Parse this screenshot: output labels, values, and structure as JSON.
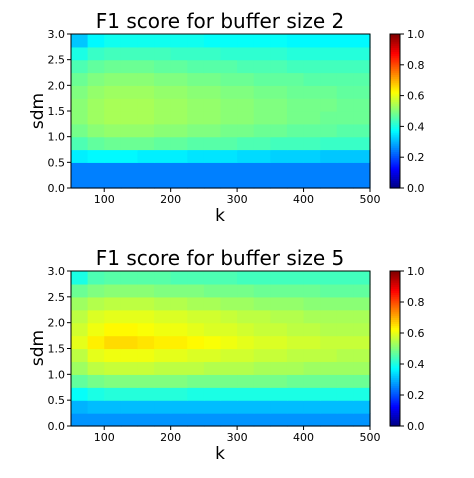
{
  "chart_data": [
    {
      "type": "heatmap",
      "title": "F1 score for buffer size 2",
      "xlabel": "k",
      "ylabel": "sdm",
      "xlim": [
        50,
        500
      ],
      "ylim": [
        0.0,
        3.0
      ],
      "x_ticks": [
        "100",
        "200",
        "300",
        "400",
        "500"
      ],
      "x_tick_values": [
        100,
        200,
        300,
        400,
        500
      ],
      "y_ticks": [
        "0.0",
        "0.5",
        "1.0",
        "1.5",
        "2.0",
        "2.5",
        "3.0"
      ],
      "y_tick_values": [
        0.0,
        0.5,
        1.0,
        1.5,
        2.0,
        2.5,
        3.0
      ],
      "colorbar": {
        "min": 0.0,
        "max": 1.0,
        "ticks": [
          "0.0",
          "0.2",
          "0.4",
          "0.6",
          "0.8",
          "1.0"
        ],
        "tick_values": [
          0.0,
          0.2,
          0.4,
          0.6,
          0.8,
          1.0
        ],
        "colormap": "jet"
      },
      "x_edges": [
        50,
        75,
        100,
        125,
        150,
        175,
        200,
        225,
        250,
        275,
        300,
        325,
        350,
        375,
        400,
        425,
        450,
        475,
        500
      ],
      "y_edges": [
        0.0,
        0.5,
        0.75,
        1.0,
        1.25,
        1.5,
        1.75,
        2.0,
        2.25,
        2.5,
        2.75,
        3.0
      ],
      "values": [
        [
          0.25,
          0.25,
          0.25,
          0.25,
          0.25,
          0.25,
          0.25,
          0.25,
          0.25,
          0.25,
          0.25,
          0.25,
          0.25,
          0.25,
          0.25,
          0.25,
          0.25,
          0.25
        ],
        [
          0.36,
          0.37,
          0.37,
          0.37,
          0.36,
          0.36,
          0.36,
          0.35,
          0.35,
          0.35,
          0.34,
          0.34,
          0.33,
          0.33,
          0.33,
          0.32,
          0.32,
          0.32
        ],
        [
          0.45,
          0.47,
          0.48,
          0.48,
          0.48,
          0.47,
          0.47,
          0.46,
          0.46,
          0.46,
          0.45,
          0.45,
          0.44,
          0.44,
          0.44,
          0.43,
          0.43,
          0.43
        ],
        [
          0.49,
          0.51,
          0.52,
          0.52,
          0.52,
          0.51,
          0.51,
          0.5,
          0.5,
          0.49,
          0.49,
          0.48,
          0.48,
          0.47,
          0.47,
          0.47,
          0.46,
          0.46
        ],
        [
          0.51,
          0.53,
          0.54,
          0.54,
          0.54,
          0.53,
          0.53,
          0.52,
          0.52,
          0.51,
          0.51,
          0.5,
          0.5,
          0.49,
          0.49,
          0.48,
          0.48,
          0.48
        ],
        [
          0.51,
          0.53,
          0.54,
          0.54,
          0.54,
          0.53,
          0.53,
          0.52,
          0.52,
          0.51,
          0.51,
          0.5,
          0.5,
          0.49,
          0.49,
          0.49,
          0.48,
          0.48
        ],
        [
          0.5,
          0.52,
          0.53,
          0.53,
          0.53,
          0.52,
          0.52,
          0.51,
          0.51,
          0.5,
          0.5,
          0.49,
          0.49,
          0.48,
          0.48,
          0.48,
          0.47,
          0.47
        ],
        [
          0.48,
          0.5,
          0.51,
          0.51,
          0.51,
          0.5,
          0.5,
          0.49,
          0.49,
          0.48,
          0.48,
          0.47,
          0.47,
          0.47,
          0.46,
          0.46,
          0.46,
          0.46
        ],
        [
          0.45,
          0.47,
          0.48,
          0.48,
          0.48,
          0.47,
          0.47,
          0.46,
          0.46,
          0.46,
          0.45,
          0.45,
          0.45,
          0.44,
          0.44,
          0.44,
          0.44,
          0.44
        ],
        [
          0.4,
          0.43,
          0.44,
          0.44,
          0.44,
          0.44,
          0.43,
          0.43,
          0.43,
          0.42,
          0.42,
          0.42,
          0.42,
          0.41,
          0.41,
          0.41,
          0.41,
          0.41
        ],
        [
          0.32,
          0.37,
          0.39,
          0.39,
          0.39,
          0.39,
          0.39,
          0.39,
          0.38,
          0.38,
          0.38,
          0.38,
          0.38,
          0.37,
          0.37,
          0.37,
          0.37,
          0.37
        ]
      ]
    },
    {
      "type": "heatmap",
      "title": "F1 score for buffer size 5",
      "xlabel": "k",
      "ylabel": "sdm",
      "xlim": [
        50,
        500
      ],
      "ylim": [
        0.0,
        3.0
      ],
      "x_ticks": [
        "100",
        "200",
        "300",
        "400",
        "500"
      ],
      "x_tick_values": [
        100,
        200,
        300,
        400,
        500
      ],
      "y_ticks": [
        "0.0",
        "0.5",
        "1.0",
        "1.5",
        "2.0",
        "2.5",
        "3.0"
      ],
      "y_tick_values": [
        0.0,
        0.5,
        1.0,
        1.5,
        2.0,
        2.5,
        3.0
      ],
      "colorbar": {
        "min": 0.0,
        "max": 1.0,
        "ticks": [
          "0.0",
          "0.2",
          "0.4",
          "0.6",
          "0.8",
          "1.0"
        ],
        "tick_values": [
          0.0,
          0.2,
          0.4,
          0.6,
          0.8,
          1.0
        ],
        "colormap": "jet"
      },
      "x_edges": [
        50,
        75,
        100,
        125,
        150,
        175,
        200,
        225,
        250,
        275,
        300,
        325,
        350,
        375,
        400,
        425,
        450,
        475,
        500
      ],
      "y_edges": [
        0.0,
        0.25,
        0.5,
        0.75,
        1.0,
        1.25,
        1.5,
        1.75,
        2.0,
        2.25,
        2.5,
        2.75,
        3.0
      ],
      "values": [
        [
          0.27,
          0.27,
          0.27,
          0.27,
          0.27,
          0.27,
          0.27,
          0.27,
          0.27,
          0.27,
          0.27,
          0.27,
          0.27,
          0.27,
          0.27,
          0.27,
          0.27,
          0.27
        ],
        [
          0.3,
          0.31,
          0.31,
          0.31,
          0.31,
          0.31,
          0.31,
          0.31,
          0.31,
          0.31,
          0.31,
          0.31,
          0.31,
          0.31,
          0.31,
          0.31,
          0.31,
          0.31
        ],
        [
          0.38,
          0.4,
          0.41,
          0.41,
          0.41,
          0.41,
          0.41,
          0.4,
          0.4,
          0.4,
          0.4,
          0.4,
          0.4,
          0.4,
          0.4,
          0.4,
          0.4,
          0.4
        ],
        [
          0.47,
          0.49,
          0.5,
          0.5,
          0.5,
          0.5,
          0.5,
          0.49,
          0.49,
          0.49,
          0.49,
          0.49,
          0.49,
          0.48,
          0.48,
          0.48,
          0.48,
          0.48
        ],
        [
          0.53,
          0.56,
          0.57,
          0.57,
          0.57,
          0.56,
          0.56,
          0.56,
          0.55,
          0.55,
          0.55,
          0.54,
          0.54,
          0.54,
          0.53,
          0.53,
          0.53,
          0.53
        ],
        [
          0.56,
          0.6,
          0.61,
          0.61,
          0.61,
          0.6,
          0.6,
          0.59,
          0.59,
          0.58,
          0.58,
          0.57,
          0.57,
          0.56,
          0.56,
          0.56,
          0.55,
          0.55
        ],
        [
          0.6,
          0.64,
          0.66,
          0.66,
          0.65,
          0.64,
          0.64,
          0.63,
          0.62,
          0.61,
          0.6,
          0.59,
          0.59,
          0.58,
          0.58,
          0.57,
          0.57,
          0.57
        ],
        [
          0.58,
          0.61,
          0.63,
          0.63,
          0.62,
          0.61,
          0.61,
          0.6,
          0.59,
          0.59,
          0.58,
          0.57,
          0.57,
          0.56,
          0.56,
          0.55,
          0.55,
          0.55
        ],
        [
          0.56,
          0.59,
          0.6,
          0.6,
          0.6,
          0.59,
          0.59,
          0.58,
          0.58,
          0.57,
          0.56,
          0.56,
          0.55,
          0.55,
          0.54,
          0.54,
          0.54,
          0.54
        ],
        [
          0.53,
          0.55,
          0.56,
          0.56,
          0.56,
          0.55,
          0.55,
          0.54,
          0.54,
          0.53,
          0.53,
          0.52,
          0.52,
          0.52,
          0.51,
          0.51,
          0.51,
          0.51
        ],
        [
          0.48,
          0.5,
          0.51,
          0.51,
          0.51,
          0.5,
          0.5,
          0.5,
          0.49,
          0.49,
          0.49,
          0.48,
          0.48,
          0.48,
          0.48,
          0.47,
          0.47,
          0.47
        ],
        [
          0.4,
          0.45,
          0.46,
          0.46,
          0.46,
          0.46,
          0.45,
          0.45,
          0.45,
          0.45,
          0.44,
          0.44,
          0.44,
          0.44,
          0.44,
          0.44,
          0.44,
          0.44
        ]
      ]
    }
  ]
}
